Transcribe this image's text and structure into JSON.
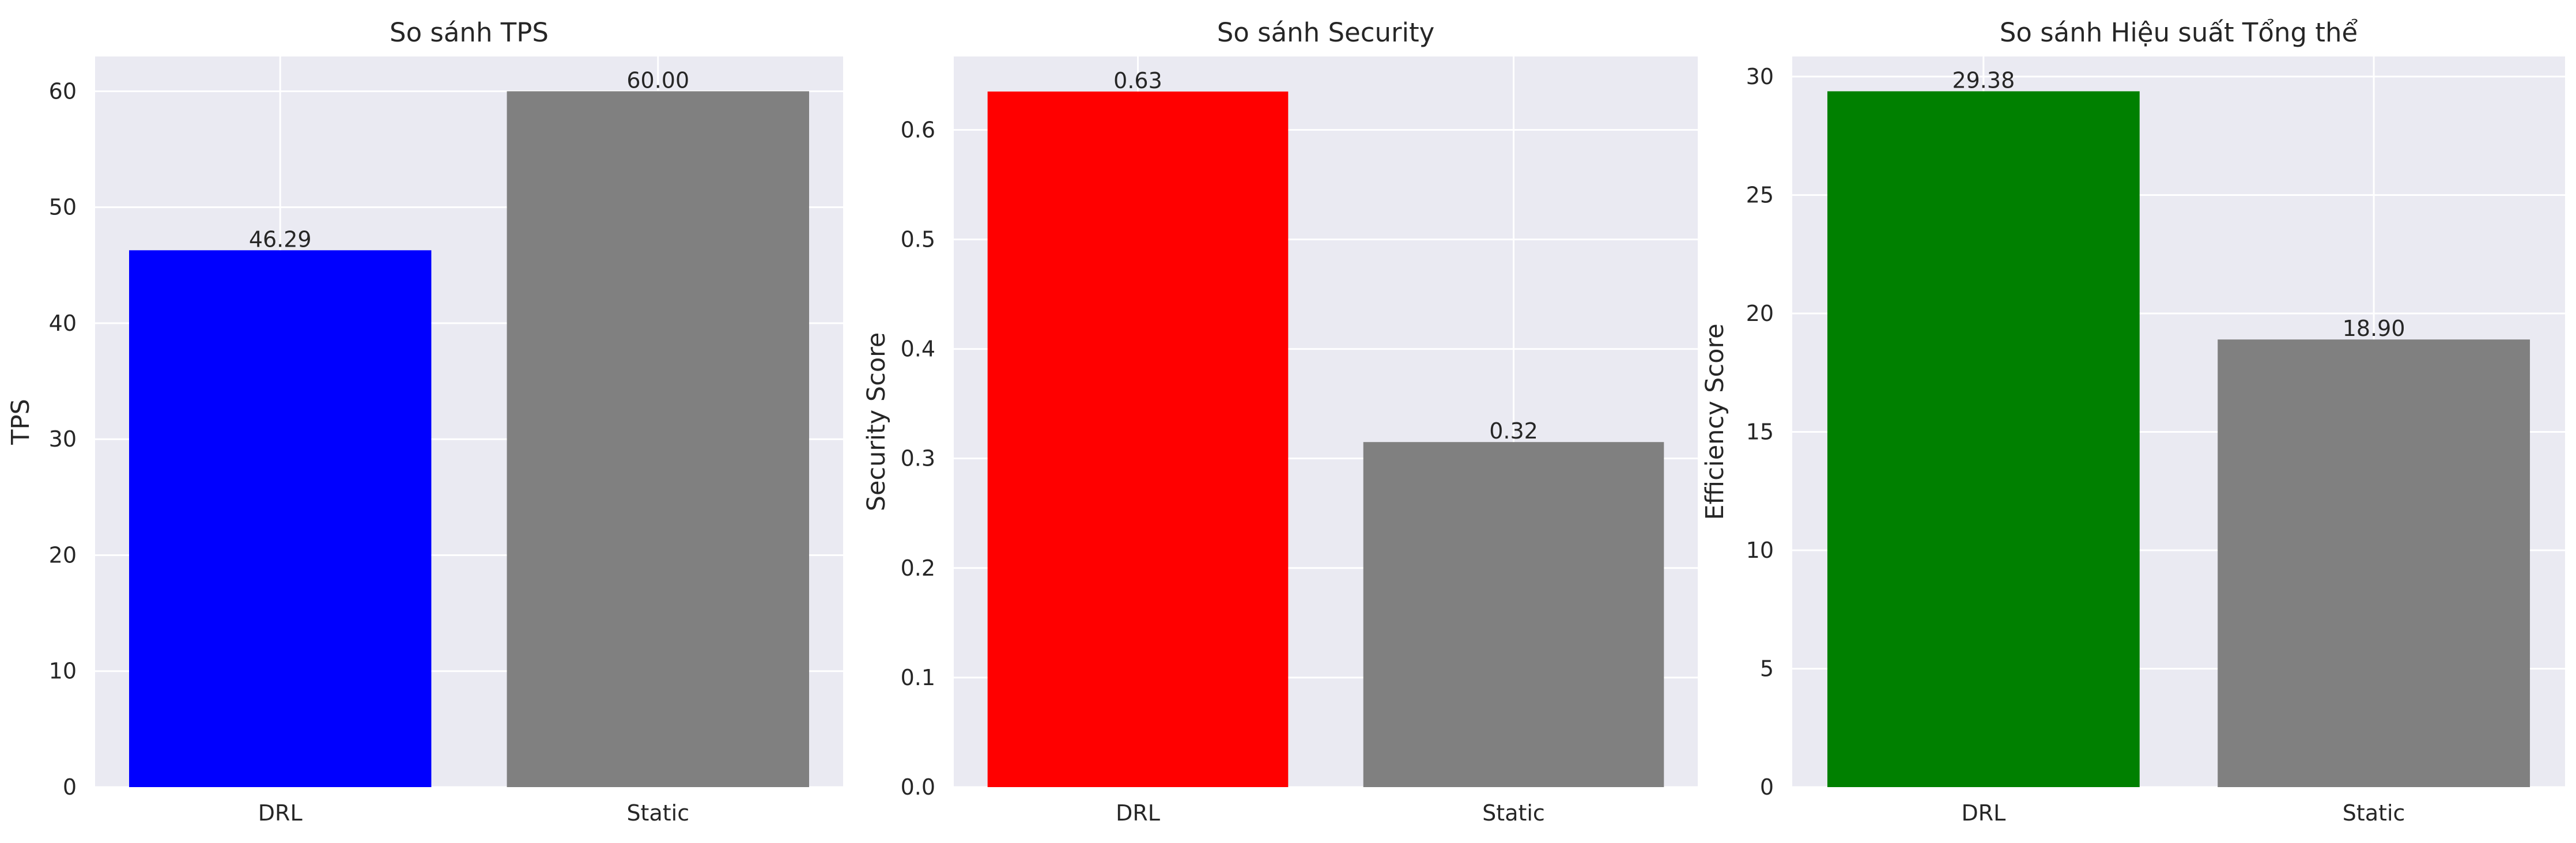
{
  "colors": {
    "plot_bg": "#EAEAF2",
    "grid": "#FFFFFF",
    "text": "#262626"
  },
  "chart_data": [
    {
      "type": "bar",
      "title": "So sánh TPS",
      "xlabel": "",
      "ylabel": "TPS",
      "categories": [
        "DRL",
        "Static"
      ],
      "values": [
        46.29,
        60.0
      ],
      "value_labels": [
        "46.29",
        "60.00"
      ],
      "colors": [
        "#0000FF",
        "#808080"
      ],
      "ylim": [
        0,
        63
      ],
      "yticks": [
        0,
        10,
        20,
        30,
        40,
        50,
        60
      ],
      "ytick_labels": [
        "0",
        "10",
        "20",
        "30",
        "40",
        "50",
        "60"
      ],
      "grid": true
    },
    {
      "type": "bar",
      "title": "So sánh Security",
      "xlabel": "",
      "ylabel": "Security Score",
      "categories": [
        "DRL",
        "Static"
      ],
      "values": [
        0.635,
        0.315
      ],
      "value_labels": [
        "0.63",
        "0.32"
      ],
      "colors": [
        "#FF0000",
        "#808080"
      ],
      "ylim": [
        0,
        0.667
      ],
      "yticks": [
        0.0,
        0.1,
        0.2,
        0.3,
        0.4,
        0.5,
        0.6
      ],
      "ytick_labels": [
        "0.0",
        "0.1",
        "0.2",
        "0.3",
        "0.4",
        "0.5",
        "0.6"
      ],
      "grid": true
    },
    {
      "type": "bar",
      "title": "So sánh Hiệu suất Tổng thể",
      "xlabel": "",
      "ylabel": "Efficiency Score",
      "categories": [
        "DRL",
        "Static"
      ],
      "values": [
        29.38,
        18.9
      ],
      "value_labels": [
        "29.38",
        "18.90"
      ],
      "colors": [
        "#008000",
        "#808080"
      ],
      "ylim": [
        0,
        30.85
      ],
      "yticks": [
        0,
        5,
        10,
        15,
        20,
        25,
        30
      ],
      "ytick_labels": [
        "0",
        "5",
        "10",
        "15",
        "20",
        "25",
        "30"
      ],
      "grid": true
    }
  ]
}
